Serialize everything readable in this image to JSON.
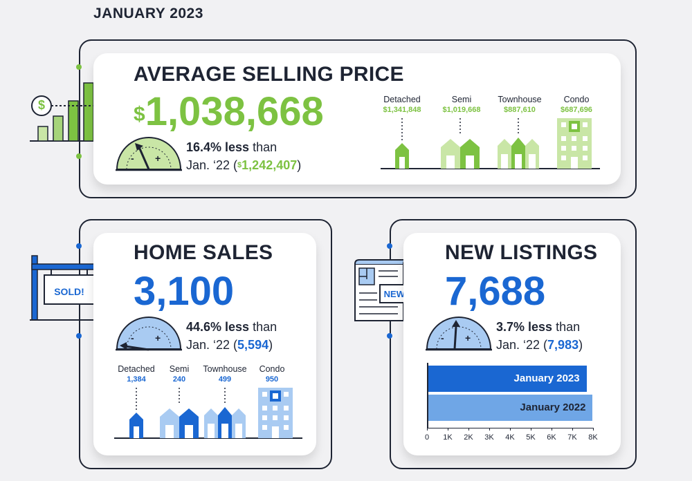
{
  "title": "JANUARY 2023",
  "selling_price": {
    "heading": "AVERAGE SELLING PRICE",
    "currency_symbol": "$",
    "value": "1,038,668",
    "change": "16.4% less",
    "change_suffix": " than",
    "compare_prefix": "Jan. ‘22 (",
    "compare_symbol": "$",
    "compare_value": "1,242,407",
    "compare_suffix": ")",
    "gauge_minus": "-",
    "gauge_plus": "+",
    "types": [
      {
        "label": "Detached",
        "value": "$1,341,848"
      },
      {
        "label": "Semi",
        "value": "$1,019,668"
      },
      {
        "label": "Townhouse",
        "value": "$887,610"
      },
      {
        "label": "Condo",
        "value": "$687,696"
      }
    ],
    "icon": "price-bar-chart-icon",
    "icon_symbol": "$"
  },
  "home_sales": {
    "heading": "HOME SALES",
    "value": "3,100",
    "change": "44.6% less",
    "change_suffix": " than",
    "compare_prefix": "Jan. ‘22 (",
    "compare_value": "5,594",
    "compare_suffix": ")",
    "gauge_minus": "-",
    "gauge_plus": "+",
    "sign_text": "SOLD!",
    "types": [
      {
        "label": "Detached",
        "value": "1,384"
      },
      {
        "label": "Semi",
        "value": "240"
      },
      {
        "label": "Townhouse",
        "value": "499"
      },
      {
        "label": "Condo",
        "value": "950"
      }
    ]
  },
  "new_listings": {
    "heading": "NEW LISTINGS",
    "value": "7,688",
    "change": "3.7% less",
    "change_suffix": " than",
    "compare_prefix": "Jan. ‘22 (",
    "compare_value": "7,983",
    "compare_suffix": ")",
    "gauge_minus": "-",
    "gauge_plus": "+",
    "doc_badge": "NEW!",
    "chart_data": {
      "type": "bar",
      "orientation": "horizontal",
      "categories": [
        "January 2023",
        "January 2022"
      ],
      "values": [
        7688,
        7983
      ],
      "xlim": [
        0,
        8000
      ],
      "xticks": [
        "0",
        "1K",
        "2K",
        "3K",
        "4K",
        "5K",
        "6K",
        "7K",
        "8K"
      ],
      "colors": [
        "#1a67d2",
        "#6fa6e6"
      ]
    }
  },
  "colors": {
    "green": "#7dc242",
    "light_green": "#c9e6a6",
    "blue": "#1a67d2",
    "light_blue": "#a9cbf2",
    "dark": "#1e2433"
  }
}
